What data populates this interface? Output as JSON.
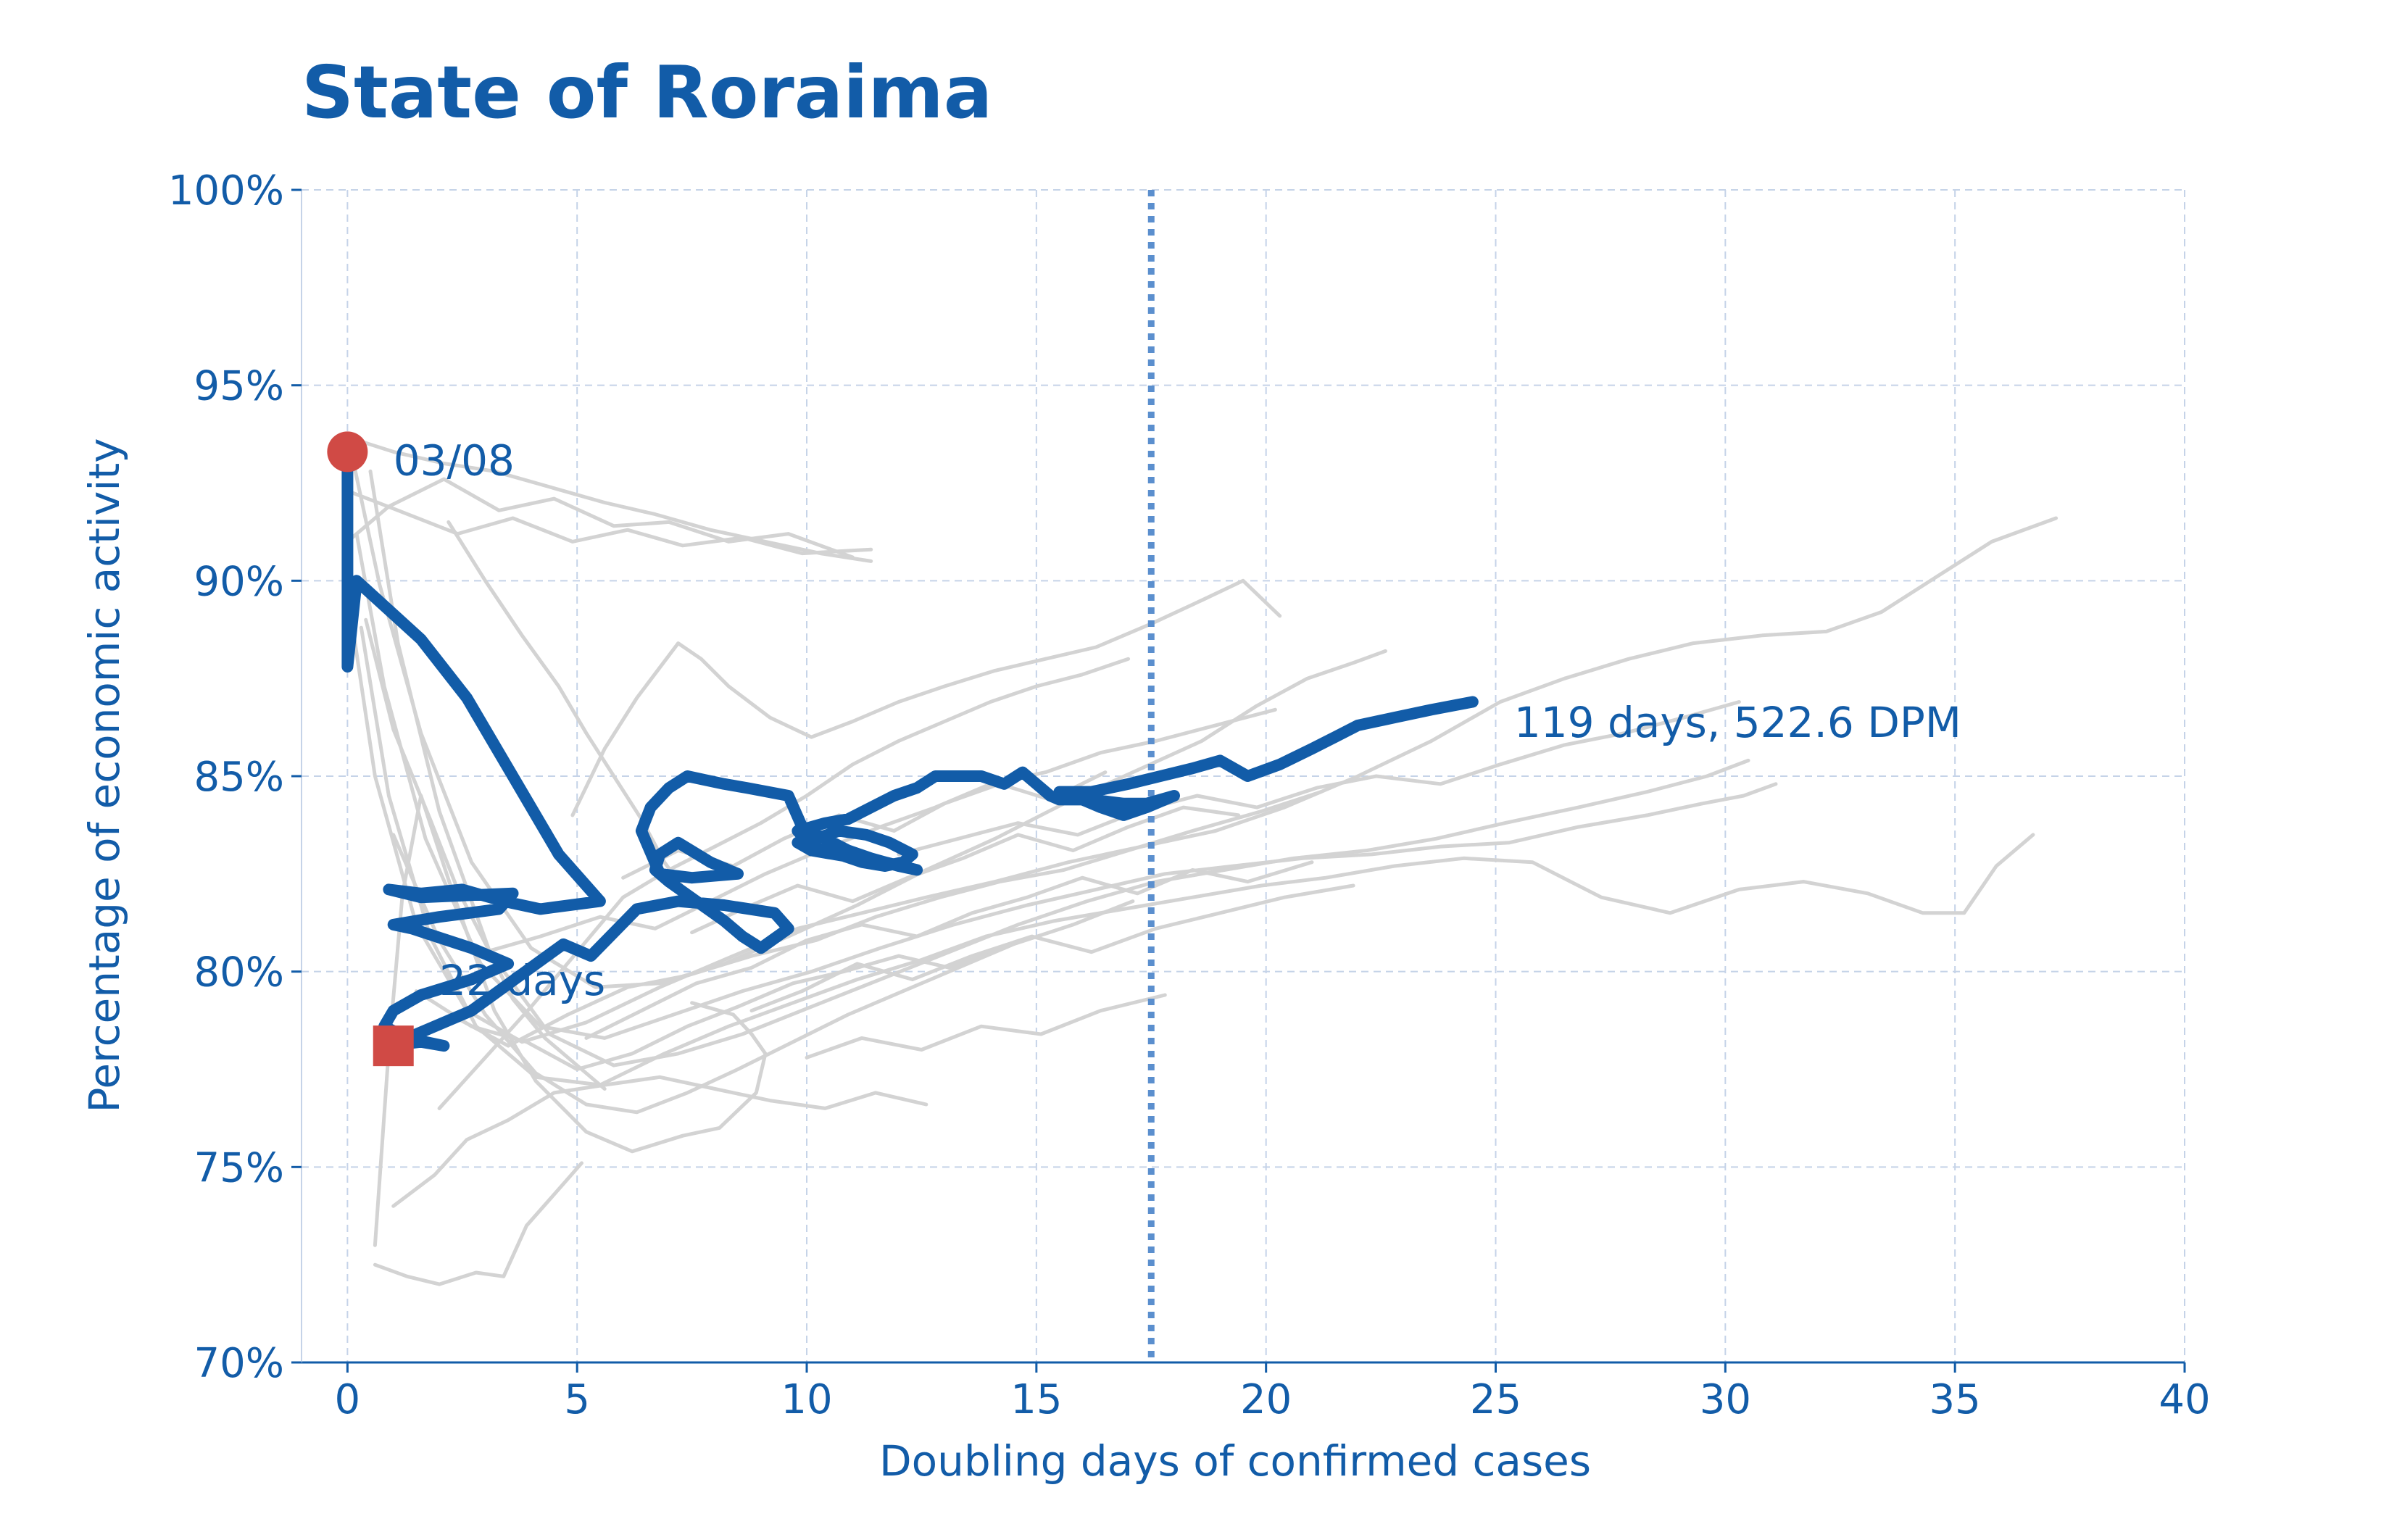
{
  "chart_data": {
    "type": "line",
    "title": "State of Roraima",
    "xlabel": "Doubling days of confirmed cases",
    "ylabel": "Percentage of economic activity",
    "xlim": [
      -1,
      40
    ],
    "ylim": [
      70,
      100
    ],
    "x_ticks": [
      0,
      5,
      10,
      15,
      20,
      25,
      30,
      35,
      40
    ],
    "x_tick_labels": [
      "0",
      "5",
      "10",
      "15",
      "20",
      "25",
      "30",
      "35",
      "40"
    ],
    "y_ticks": [
      70,
      75,
      80,
      85,
      90,
      95,
      100
    ],
    "y_tick_labels": [
      "70%",
      "75%",
      "80%",
      "85%",
      "90%",
      "95%",
      "100%"
    ],
    "grid": true,
    "reference_line_x": 17.5,
    "colors": {
      "highlight": "#125ca8",
      "background_series": "#d3d3d3",
      "marker": "#d04a45",
      "reference_line": "#5b8fce",
      "grid": "#c5d3e8",
      "text": "#125ca8"
    },
    "highlight_series": {
      "x": [
        0,
        0,
        0,
        0.2,
        1.6,
        2.6,
        3.6,
        4.6,
        5.5,
        4.2,
        3.4,
        2.5,
        1.6,
        0.9,
        1.6,
        3.6,
        3.3,
        2.0,
        1.0,
        1.4,
        2.7,
        3.5,
        2.7,
        1.6,
        1.0,
        0.8,
        1.3,
        2.1,
        1.6,
        0.9,
        1.7,
        2.7,
        4.7,
        5.3,
        6.3,
        7.2,
        8.2,
        9.3,
        9.6,
        9.0,
        8.6,
        8.2,
        7.6,
        7.0,
        6.7,
        6.8,
        7.2,
        7.9,
        8.5,
        7.5,
        6.8,
        6.4,
        6.6,
        7.0,
        7.4,
        7.8,
        8.2,
        8.7,
        9.6,
        9.9,
        10.4,
        10.9,
        11.4,
        12.0,
        12.4,
        11.7,
        11.1,
        10.6,
        10.1,
        9.8,
        10.2,
        10.7,
        11.3,
        11.8,
        12.3,
        12.1,
        11.7,
        11.2,
        10.7,
        10.1,
        9.8,
        10.4,
        10.9,
        11.4,
        11.9,
        12.4,
        12.8,
        13.2,
        13.8,
        14.3,
        14.7,
        15.1,
        15.3,
        15.5,
        16.2,
        16.9,
        17.4,
        18.0,
        17.4,
        16.9,
        16.4,
        16.0,
        15.5,
        16.2,
        17.0,
        17.7,
        18.4,
        19.0,
        19.6,
        20.3,
        21.0,
        21.5,
        22.0,
        22.8,
        23.6,
        24.5
      ],
      "y": [
        93.3,
        91.0,
        87.8,
        90.0,
        88.5,
        87.0,
        85.0,
        83.0,
        81.8,
        81.6,
        81.8,
        82.1,
        82.0,
        82.1,
        81.9,
        82.0,
        81.6,
        81.4,
        81.2,
        81.1,
        80.6,
        80.2,
        79.8,
        79.4,
        79.0,
        78.6,
        78.3,
        78.1,
        78.2,
        78.1,
        78.5,
        79.0,
        80.7,
        80.4,
        81.6,
        81.8,
        81.7,
        81.5,
        81.1,
        80.6,
        80.9,
        81.3,
        81.8,
        82.3,
        82.6,
        83.0,
        83.3,
        82.8,
        82.5,
        82.4,
        82.5,
        83.6,
        84.2,
        84.7,
        85.0,
        84.9,
        84.8,
        84.7,
        84.5,
        83.7,
        83.4,
        83.1,
        82.9,
        82.7,
        82.6,
        82.8,
        82.9,
        83.0,
        83.1,
        83.3,
        83.4,
        83.6,
        83.5,
        83.3,
        83.0,
        82.8,
        82.7,
        82.8,
        83.0,
        83.2,
        83.6,
        83.8,
        83.9,
        84.2,
        84.5,
        84.7,
        85.0,
        85.0,
        85.0,
        84.8,
        85.1,
        84.7,
        84.5,
        84.4,
        84.4,
        84.3,
        84.3,
        84.5,
        84.2,
        84.0,
        84.2,
        84.4,
        84.6,
        84.6,
        84.8,
        85.0,
        85.2,
        85.4,
        85.0,
        85.3,
        85.7,
        86.0,
        86.3,
        86.5,
        86.7,
        86.9
      ]
    },
    "start_point": {
      "x": 0,
      "y": 93.3
    },
    "end_point": {
      "x": 1,
      "y": 78.1
    },
    "annotations": [
      {
        "text": "03/08",
        "x": 1.0,
        "y": 92.7
      },
      {
        "text": "22 days",
        "x": 2.0,
        "y": 79.4
      },
      {
        "text": "119 days, 522.6 DPM",
        "x": 25.4,
        "y": 86.0
      }
    ],
    "background_series": [
      {
        "x": [
          0,
          0.6,
          1.5,
          2.6,
          3.8,
          5.2,
          6.8,
          8.4,
          9.8,
          11.2,
          12.6,
          14.1,
          15.7,
          17.3,
          18.9,
          20.4,
          22.0,
          23.6,
          25.1,
          26.5,
          27.9,
          29.3,
          30.8,
          32.2,
          33.4,
          34.6,
          35.8,
          37.2
        ],
        "y": [
          89.7,
          85.0,
          81.2,
          79.0,
          78.2,
          78.7,
          79.6,
          80.4,
          81.1,
          81.5,
          81.9,
          82.3,
          82.8,
          83.2,
          83.6,
          84.2,
          85.0,
          85.9,
          86.9,
          87.5,
          88.0,
          88.4,
          88.6,
          88.7,
          89.2,
          90.1,
          91.0,
          91.6
        ]
      },
      {
        "x": [
          0.3,
          0.9,
          1.8,
          2.8,
          4.1,
          5.5,
          6.9,
          8.3,
          9.7,
          11.1,
          12.5,
          13.9,
          15.4,
          16.9,
          18.4,
          19.9,
          21.3,
          22.8,
          24.3,
          25.8,
          27.3,
          28.8,
          30.3,
          31.7,
          33.1,
          34.3,
          35.2,
          35.9,
          36.7
        ],
        "y": [
          88.8,
          84.5,
          80.9,
          78.6,
          77.3,
          77.1,
          77.9,
          78.6,
          79.2,
          79.8,
          80.3,
          80.9,
          81.3,
          81.6,
          81.9,
          82.2,
          82.4,
          82.7,
          82.9,
          82.8,
          81.9,
          81.5,
          82.1,
          82.3,
          82.0,
          81.5,
          81.5,
          82.7,
          83.5
        ]
      },
      {
        "x": [
          0.5,
          1.1,
          2.0,
          3.1,
          4.4,
          5.8,
          7.2,
          8.6,
          10.1,
          11.6,
          13.1,
          14.6,
          16.1,
          17.6,
          19.1,
          20.6,
          22.2,
          23.7,
          25.2,
          26.8,
          28.3,
          29.6,
          30.5
        ],
        "y": [
          92.8,
          88.4,
          84.1,
          80.5,
          78.4,
          77.6,
          77.9,
          78.4,
          79.1,
          79.8,
          80.5,
          81.2,
          81.8,
          82.3,
          82.6,
          82.9,
          83.1,
          83.4,
          83.8,
          84.2,
          84.6,
          85.0,
          85.4
        ]
      },
      {
        "x": [
          0.2,
          0.8,
          1.7,
          2.9,
          4.2,
          5.6,
          7.1,
          8.6,
          10.1,
          11.6,
          13.2,
          14.8,
          16.3,
          17.8,
          19.3,
          20.8,
          22.3,
          23.8,
          25.3,
          26.8,
          28.3,
          29.5,
          30.4,
          31.1
        ],
        "y": [
          91.2,
          87.3,
          83.4,
          80.2,
          78.6,
          78.3,
          78.9,
          79.5,
          80.0,
          80.6,
          81.2,
          81.7,
          82.1,
          82.5,
          82.7,
          82.9,
          83.0,
          83.2,
          83.3,
          83.7,
          84.0,
          84.3,
          84.5,
          84.8
        ]
      },
      {
        "x": [
          0.1,
          0.7,
          1.6,
          2.7,
          4.0,
          5.4,
          6.8,
          8.2,
          9.6,
          11.1,
          12.6,
          14.1,
          15.6,
          17.1,
          18.6,
          19.8,
          20.9,
          21.9,
          22.6
        ],
        "y": [
          93.2,
          89.9,
          86.1,
          82.8,
          80.6,
          79.6,
          79.7,
          80.2,
          80.9,
          81.7,
          82.6,
          83.4,
          84.3,
          85.1,
          85.9,
          86.8,
          87.5,
          87.9,
          88.2
        ]
      },
      {
        "x": [
          0,
          1.1,
          2.4,
          3.6,
          4.9,
          6.1,
          7.3,
          8.6,
          9.9,
          11.4
        ],
        "y": [
          92.3,
          91.8,
          91.2,
          91.6,
          91.0,
          91.3,
          90.9,
          91.1,
          90.7,
          90.8
        ]
      },
      {
        "x": [
          0,
          0.9,
          2.1,
          3.3,
          4.5,
          5.8,
          7.0,
          8.3,
          9.6,
          11.0
        ],
        "y": [
          91.0,
          91.9,
          92.6,
          91.8,
          92.1,
          91.4,
          91.5,
          91.0,
          91.2,
          90.6
        ]
      },
      {
        "x": [
          0.2,
          1.0,
          2.1,
          3.2,
          4.4,
          5.6,
          6.7,
          7.9,
          9.1,
          10.3,
          11.4
        ],
        "y": [
          93.6,
          93.3,
          93.0,
          92.8,
          92.4,
          92.0,
          91.7,
          91.3,
          91.0,
          90.7,
          90.5
        ]
      },
      {
        "x": [
          0.6,
          0.9,
          1.2,
          1.6,
          2.3,
          3.2,
          4.1,
          5.2,
          6.2,
          7.3,
          8.1,
          8.9,
          9.1,
          8.8,
          8.4,
          7.5
        ],
        "y": [
          73.0,
          78.0,
          82.0,
          84.5,
          82.0,
          79.0,
          77.2,
          75.9,
          75.4,
          75.8,
          76.0,
          76.9,
          77.9,
          78.4,
          78.9,
          79.2
        ]
      },
      {
        "x": [
          0.6,
          1.3,
          2.0,
          2.8,
          3.4,
          3.9,
          4.5,
          5.1
        ],
        "y": [
          72.5,
          72.2,
          72.0,
          72.3,
          72.2,
          73.5,
          74.3,
          75.1
        ]
      },
      {
        "x": [
          1.0,
          1.9,
          2.6,
          3.5,
          4.5,
          5.6,
          6.8,
          8.0,
          9.2,
          10.4,
          11.5,
          12.6
        ],
        "y": [
          74.0,
          74.8,
          75.7,
          76.2,
          76.9,
          77.1,
          77.3,
          77.0,
          76.7,
          76.5,
          76.9,
          76.6
        ]
      },
      {
        "x": [
          2.0,
          3.0,
          4.0,
          5.0,
          6.0,
          7.0,
          8.0,
          9.0,
          10.0,
          11.0,
          12.0,
          13.0,
          14.0,
          15.0,
          16.0,
          17.0
        ],
        "y": [
          76.5,
          77.8,
          79.1,
          80.5,
          81.9,
          82.6,
          83.2,
          83.8,
          84.5,
          85.3,
          85.9,
          86.4,
          86.9,
          87.3,
          87.6,
          88.0
        ]
      },
      {
        "x": [
          2.4,
          3.5,
          4.8,
          6.1,
          7.4,
          8.8,
          10.2,
          11.5,
          12.9,
          14.2,
          15.6,
          17.0,
          18.4,
          19.9,
          21.2
        ],
        "y": [
          78.8,
          78.1,
          78.9,
          79.6,
          79.9,
          80.4,
          80.8,
          81.4,
          81.9,
          82.3,
          82.6,
          83.1,
          83.6,
          84.1,
          84.6
        ]
      },
      {
        "x": [
          3.0,
          4.2,
          5.5,
          6.7,
          7.9,
          9.1,
          10.3,
          11.6,
          12.8,
          14.0,
          15.2,
          16.4,
          17.6,
          18.9,
          20.2
        ],
        "y": [
          80.5,
          80.9,
          81.4,
          81.1,
          81.8,
          82.5,
          83.1,
          83.7,
          84.2,
          84.8,
          85.1,
          85.6,
          85.9,
          86.3,
          86.7
        ]
      },
      {
        "x": [
          1.5,
          2.7,
          3.9,
          5.0,
          6.2,
          7.4,
          8.5,
          9.7,
          10.8,
          12.0,
          13.1,
          14.3
        ],
        "y": [
          79.5,
          78.6,
          78.2,
          77.5,
          77.9,
          78.6,
          79.1,
          79.7,
          80.0,
          80.4,
          80.1,
          80.6
        ]
      },
      {
        "x": [
          4.9,
          5.6,
          6.3,
          7.2,
          7.7,
          8.3,
          9.2,
          10.1,
          11.0,
          12.0,
          13.0,
          14.1,
          15.2,
          16.3,
          17.5,
          18.6,
          19.5,
          20.3
        ],
        "y": [
          84.0,
          85.7,
          87.0,
          88.4,
          88.0,
          87.3,
          86.5,
          86.0,
          86.4,
          86.9,
          87.3,
          87.7,
          88.0,
          88.3,
          88.9,
          89.5,
          90.0,
          89.1
        ]
      },
      {
        "x": [
          6.0,
          7.2,
          8.4,
          9.5,
          10.7,
          11.9,
          13.0,
          14.2,
          15.3,
          16.5
        ],
        "y": [
          82.4,
          83.1,
          82.7,
          83.4,
          84.0,
          83.6,
          84.3,
          84.8,
          84.4,
          85.1
        ]
      },
      {
        "x": [
          7.5,
          8.6,
          9.8,
          11.0,
          12.2,
          13.4,
          14.6,
          15.8,
          17.0,
          18.2,
          19.4
        ],
        "y": [
          81.0,
          81.6,
          82.2,
          81.8,
          82.4,
          82.9,
          83.5,
          83.1,
          83.7,
          84.2,
          84.0
        ]
      },
      {
        "x": [
          5.2,
          6.4,
          7.6,
          8.8,
          10.0,
          11.2,
          12.4,
          13.6,
          14.8,
          16.0,
          17.2,
          18.4,
          19.6,
          21.0
        ],
        "y": [
          78.3,
          79.0,
          79.7,
          80.1,
          80.8,
          81.2,
          80.9,
          81.5,
          81.9,
          82.4,
          82.0,
          82.6,
          82.3,
          82.8
        ]
      },
      {
        "x": [
          8.8,
          9.9,
          11.1,
          12.3,
          13.6,
          14.9,
          16.2,
          17.6,
          19.0,
          20.4,
          21.9
        ],
        "y": [
          79.0,
          79.5,
          80.2,
          79.8,
          80.4,
          80.9,
          80.5,
          81.1,
          81.5,
          81.9,
          82.2
        ]
      },
      {
        "x": [
          10.0,
          11.2,
          12.5,
          13.8,
          15.1,
          16.4,
          17.8
        ],
        "y": [
          77.8,
          78.3,
          78.0,
          78.6,
          78.4,
          79.0,
          79.4
        ]
      },
      {
        "x": [
          1.0,
          2.0,
          3.0,
          4.1,
          5.2,
          6.3,
          7.4,
          8.5,
          9.7,
          10.9,
          12.1,
          13.3,
          14.5,
          15.8,
          17.1
        ],
        "y": [
          83.5,
          80.8,
          78.9,
          77.4,
          76.6,
          76.4,
          76.9,
          77.5,
          78.2,
          78.9,
          79.5,
          80.1,
          80.7,
          81.2,
          81.8
        ]
      },
      {
        "x": [
          12.0,
          13.3,
          14.6,
          15.9,
          17.2,
          18.5,
          19.8,
          21.1,
          22.4,
          23.8,
          25.1,
          26.5,
          27.8,
          29.1,
          30.3
        ],
        "y": [
          83.0,
          83.4,
          83.8,
          83.5,
          84.1,
          84.5,
          84.2,
          84.7,
          85.0,
          84.8,
          85.3,
          85.8,
          86.1,
          86.5,
          86.9
        ]
      },
      {
        "x": [
          2.2,
          3.0,
          3.8,
          4.6,
          5.2,
          5.8,
          6.4,
          6.9,
          7.4
        ],
        "y": [
          91.5,
          90.0,
          88.6,
          87.3,
          86.1,
          85.0,
          83.9,
          82.8,
          82.0
        ]
      },
      {
        "x": [
          0.4,
          1.0,
          1.8,
          2.4,
          3.1,
          3.6,
          4.3,
          5.0,
          5.6
        ],
        "y": [
          89.0,
          86.2,
          83.9,
          82.1,
          80.5,
          79.3,
          78.3,
          77.6,
          77.0
        ]
      }
    ]
  }
}
